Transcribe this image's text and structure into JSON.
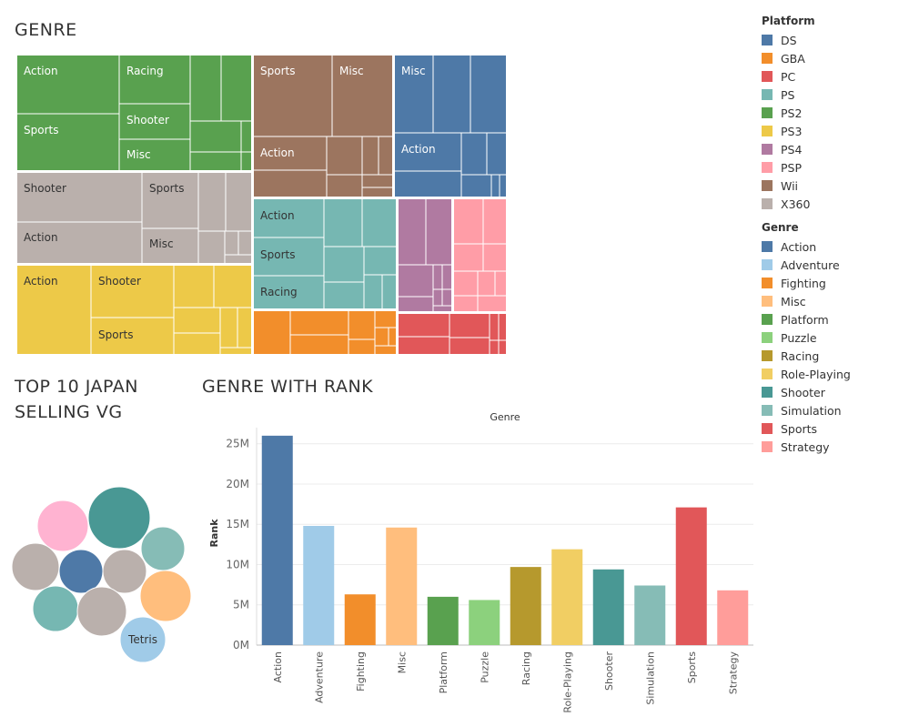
{
  "titles": {
    "genre": "GENRE",
    "top10_line1": "TOP 10 JAPAN",
    "top10_line2": "SELLING VG",
    "genre_rank": "GENRE WITH RANK"
  },
  "legend_platform": {
    "title": "Platform",
    "items": [
      {
        "label": "DS",
        "color": "#4e79a7"
      },
      {
        "label": "GBA",
        "color": "#f28e2b"
      },
      {
        "label": "PC",
        "color": "#e15759"
      },
      {
        "label": "PS",
        "color": "#76b7b2"
      },
      {
        "label": "PS2",
        "color": "#59a14f"
      },
      {
        "label": "PS3",
        "color": "#edc948"
      },
      {
        "label": "PS4",
        "color": "#b07aa1"
      },
      {
        "label": "PSP",
        "color": "#ff9da7"
      },
      {
        "label": "Wii",
        "color": "#9c755f"
      },
      {
        "label": "X360",
        "color": "#bab0ac"
      }
    ]
  },
  "legend_genre": {
    "title": "Genre",
    "items": [
      {
        "label": "Action",
        "color": "#4e79a7"
      },
      {
        "label": "Adventure",
        "color": "#a0cbe8"
      },
      {
        "label": "Fighting",
        "color": "#f28e2b"
      },
      {
        "label": "Misc",
        "color": "#ffbe7d"
      },
      {
        "label": "Platform",
        "color": "#59a14f"
      },
      {
        "label": "Puzzle",
        "color": "#8cd17d"
      },
      {
        "label": "Racing",
        "color": "#b6992d"
      },
      {
        "label": "Role-Playing",
        "color": "#f1ce63"
      },
      {
        "label": "Shooter",
        "color": "#499894"
      },
      {
        "label": "Simulation",
        "color": "#86bcb6"
      },
      {
        "label": "Sports",
        "color": "#e15759"
      },
      {
        "label": "Strategy",
        "color": "#ff9d9a"
      }
    ]
  },
  "treemap": {
    "platforms": [
      {
        "name": "PS2",
        "color": "#59a14f",
        "labels": [
          "Action",
          "Racing",
          "Sports",
          "Shooter",
          "Misc"
        ]
      },
      {
        "name": "Wii",
        "color": "#9c755f",
        "labels": [
          "Sports",
          "Misc",
          "Action"
        ]
      },
      {
        "name": "DS",
        "color": "#4e79a7",
        "labels": [
          "Misc",
          "Action"
        ]
      },
      {
        "name": "X360",
        "color": "#bab0ac",
        "labels": [
          "Shooter",
          "Sports",
          "Action",
          "Misc"
        ]
      },
      {
        "name": "PS",
        "color": "#76b7b2",
        "labels": [
          "Action",
          "Sports",
          "Racing"
        ]
      },
      {
        "name": "PS4",
        "color": "#b07aa1",
        "labels": []
      },
      {
        "name": "PSP",
        "color": "#ff9da7",
        "labels": []
      },
      {
        "name": "PS3",
        "color": "#edc948",
        "labels": [
          "Action",
          "Shooter",
          "Sports"
        ]
      },
      {
        "name": "GBA",
        "color": "#f28e2b",
        "labels": []
      },
      {
        "name": "PC",
        "color": "#e15759",
        "labels": []
      }
    ]
  },
  "bubbles": {
    "label": "Tetris",
    "colors": [
      "#ffb3d1",
      "#499894",
      "#86bcb6",
      "#bab0ac",
      "#4e79a7",
      "#bab0ac",
      "#ffbe7d",
      "#76b7b2",
      "#bab0ac",
      "#a0cbe8"
    ]
  },
  "chart_data": {
    "type": "bar",
    "title": "Genre",
    "xlabel": "Genre",
    "ylabel": "Rank",
    "categories": [
      "Action",
      "Adventure",
      "Fighting",
      "Misc",
      "Platform",
      "Puzzle",
      "Racing",
      "Role-Playing",
      "Shooter",
      "Simulation",
      "Sports",
      "Strategy"
    ],
    "values": [
      26000000,
      14800000,
      6300000,
      14600000,
      6000000,
      5600000,
      9700000,
      11900000,
      9400000,
      7400000,
      17100000,
      6800000
    ],
    "colors": [
      "#4e79a7",
      "#a0cbe8",
      "#f28e2b",
      "#ffbe7d",
      "#59a14f",
      "#8cd17d",
      "#b6992d",
      "#f1ce63",
      "#499894",
      "#86bcb6",
      "#e15759",
      "#ff9d9a"
    ],
    "ylim": [
      0,
      27000000
    ],
    "yticks": [
      0,
      5000000,
      10000000,
      15000000,
      20000000,
      25000000
    ],
    "ytick_labels": [
      "0M",
      "5M",
      "10M",
      "15M",
      "20M",
      "25M"
    ],
    "grid": true
  }
}
